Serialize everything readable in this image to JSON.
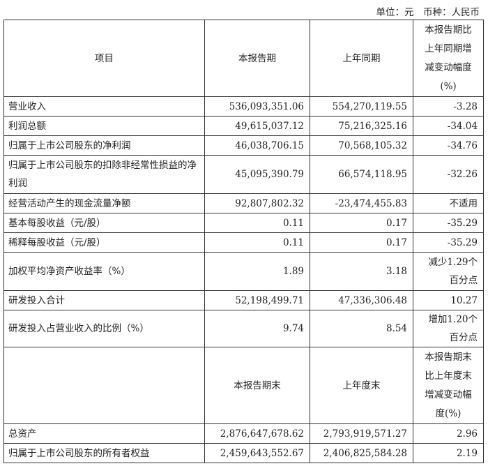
{
  "unit_line": "单位：元　币种：人民币",
  "header": {
    "item": "项目",
    "current": "本报告期",
    "prior": "上年同期",
    "change": [
      "本报告期比",
      "上年同期增",
      "减变动幅度",
      "(%)"
    ]
  },
  "rows": [
    {
      "item": "营业收入",
      "current": "536,093,351.06",
      "prior": "554,270,119.55",
      "change": [
        "-3.28"
      ]
    },
    {
      "item": "利润总额",
      "current": "49,615,037.12",
      "prior": "75,216,325.16",
      "change": [
        "-34.04"
      ]
    },
    {
      "item": "归属于上市公司股东的净利润",
      "current": "46,038,706.15",
      "prior": "70,568,105.32",
      "change": [
        "-34.76"
      ]
    },
    {
      "item": "归属于上市公司股东的扣除非经常性损益的净利润",
      "current": "45,095,390.79",
      "prior": "66,574,118.95",
      "change": [
        "-32.26"
      ]
    },
    {
      "item": "经营活动产生的现金流量净额",
      "current": "92,807,802.32",
      "prior": "-23,474,455.83",
      "change": [
        "不适用"
      ]
    },
    {
      "item": "基本每股收益（元/股）",
      "current": "0.11",
      "prior": "0.17",
      "change": [
        "-35.29"
      ]
    },
    {
      "item": "稀释每股收益（元/股）",
      "current": "0.11",
      "prior": "0.17",
      "change": [
        "-35.29"
      ]
    },
    {
      "item": "加权平均净资产收益率（%）",
      "current": "1.89",
      "prior": "3.18",
      "change": [
        "减少1.29个",
        "百分点"
      ]
    },
    {
      "item": "研发投入合计",
      "current": "52,198,499.71",
      "prior": "47,336,306.48",
      "change": [
        "10.27"
      ]
    },
    {
      "item": "研发投入占营业收入的比例（%）",
      "current": "9.74",
      "prior": "8.54",
      "change": [
        "增加1.20个",
        "百分点"
      ]
    }
  ],
  "header2": {
    "current": "本报告期末",
    "prior": "上年度末",
    "change": [
      "本报告期末",
      "比上年度末",
      "增减变动幅",
      "度(%)"
    ]
  },
  "rows2": [
    {
      "item": "总资产",
      "current": "2,876,647,678.62",
      "prior": "2,793,919,571.27",
      "change": [
        "2.96"
      ]
    },
    {
      "item": "归属于上市公司股东的所有者权益",
      "current": "2,459,643,552.67",
      "prior": "2,406,825,584.28",
      "change": [
        "2.19"
      ]
    }
  ]
}
